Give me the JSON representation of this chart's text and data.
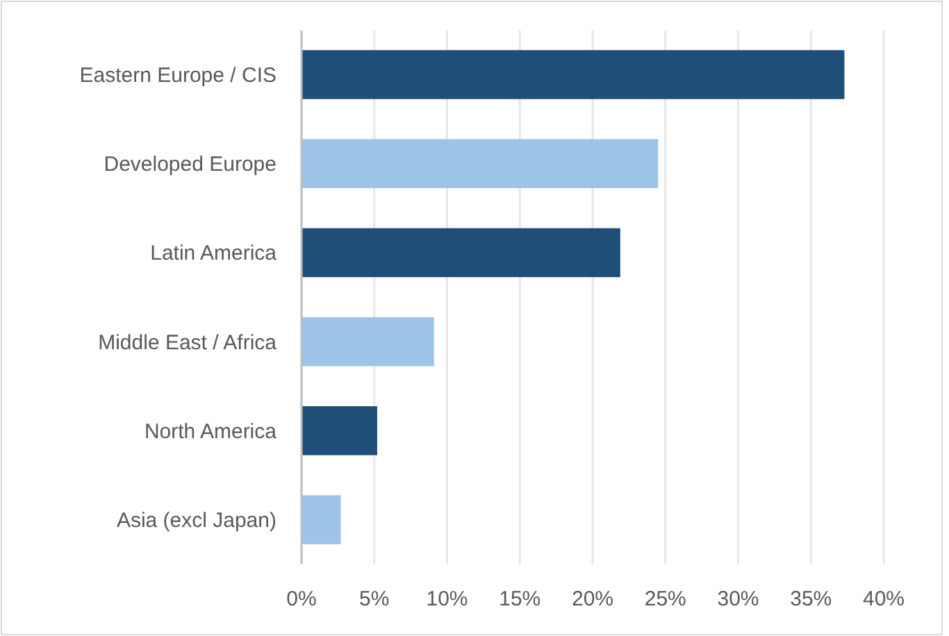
{
  "chart_data": {
    "type": "bar",
    "orientation": "horizontal",
    "categories": [
      "Eastern Europe / CIS",
      "Developed Europe",
      "Latin America",
      "Middle East / Africa",
      "North America",
      "Asia (excl Japan)"
    ],
    "values": [
      37.3,
      24.5,
      21.9,
      9.1,
      5.2,
      2.7
    ],
    "colors": [
      "#1f4e79",
      "#9dc3e6",
      "#1f4e79",
      "#9dc3e6",
      "#1f4e79",
      "#9dc3e6"
    ],
    "xlim": [
      0,
      40
    ],
    "xticks": [
      {
        "value": 0,
        "label": "0%"
      },
      {
        "value": 5,
        "label": "5%"
      },
      {
        "value": 10,
        "label": "10%"
      },
      {
        "value": 15,
        "label": "15%"
      },
      {
        "value": 20,
        "label": "20%"
      },
      {
        "value": 25,
        "label": "25%"
      },
      {
        "value": 30,
        "label": "30%"
      },
      {
        "value": 35,
        "label": "35%"
      },
      {
        "value": 40,
        "label": "40%"
      }
    ],
    "grid": "x"
  }
}
